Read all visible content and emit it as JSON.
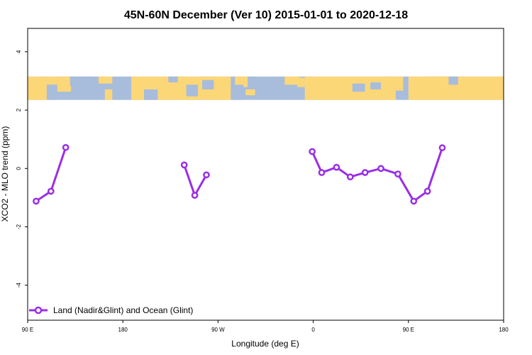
{
  "chart_data": {
    "type": "line",
    "title": "45N-60N December (Ver 10)   2015-01-01 to 2020-12-18",
    "xlabel": "Longitude (deg E)",
    "ylabel": "XCO2 - MLO trend (ppm)",
    "xlim": [
      90,
      540
    ],
    "ylim": [
      -5.2,
      4.8
    ],
    "x_ticks": [
      {
        "value": 90,
        "label": "90 E"
      },
      {
        "value": 180,
        "label": "180"
      },
      {
        "value": 270,
        "label": "90 W"
      },
      {
        "value": 360,
        "label": "0"
      },
      {
        "value": 450,
        "label": "90 E"
      },
      {
        "value": 540,
        "label": "180"
      }
    ],
    "y_ticks": [
      {
        "value": -4,
        "label": "-4"
      },
      {
        "value": -2,
        "label": "-2"
      },
      {
        "value": 0,
        "label": "0"
      },
      {
        "value": 2,
        "label": "2"
      },
      {
        "value": 4,
        "label": "4"
      }
    ],
    "grid": false,
    "legend_position": "bottom-left",
    "map_band": {
      "y_range": [
        2.35,
        3.15
      ],
      "ocean_color": "#a8bcdc",
      "land_color": "#fcd778"
    },
    "series": [
      {
        "name": "Land (Nadir&Glint) and Ocean (Glint)",
        "color": "#9a2ee6",
        "segments": [
          [
            {
              "x": 98,
              "y": -1.12
            },
            {
              "x": 112,
              "y": -0.78
            },
            {
              "x": 126,
              "y": 0.72
            }
          ],
          [
            {
              "x": 238,
              "y": 0.12
            },
            {
              "x": 248,
              "y": -0.92
            },
            {
              "x": 259,
              "y": -0.22
            }
          ],
          [
            {
              "x": 359,
              "y": 0.58
            },
            {
              "x": 368,
              "y": -0.14
            },
            {
              "x": 382,
              "y": 0.04
            },
            {
              "x": 395,
              "y": -0.29
            },
            {
              "x": 409,
              "y": -0.14
            },
            {
              "x": 424,
              "y": 0.0
            },
            {
              "x": 440,
              "y": -0.19
            },
            {
              "x": 455,
              "y": -1.12
            },
            {
              "x": 468,
              "y": -0.78
            },
            {
              "x": 482,
              "y": 0.71
            }
          ]
        ]
      }
    ]
  }
}
